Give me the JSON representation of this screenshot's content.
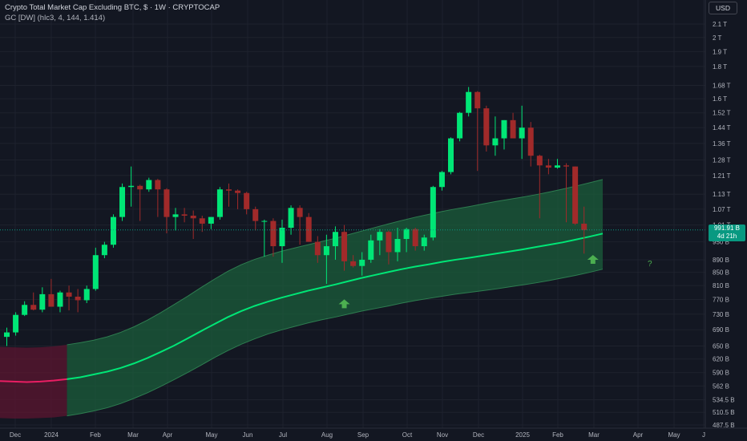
{
  "header": {
    "title": "Crypto Total Market Cap Excluding BTC, $ · 1W · CRYPTOCAP",
    "indicator": "GC [DW] (hlc3, 4, 144, 1.414)",
    "currency_button": "USD"
  },
  "price_tag": {
    "value": "991.91 B",
    "countdown": "4d 21h"
  },
  "annotation": {
    "question_mark": "?"
  },
  "colors": {
    "background": "#131722",
    "bull": "#00e676",
    "bear": "#a12a2a",
    "channel_mid": "#00e676",
    "channel_fill": "#1b5e3b",
    "channel_fill_early": "#5c1530",
    "channel_mid_early": "#e91e63",
    "arrow": "#4caf50"
  },
  "chart_data": {
    "type": "candlestick",
    "title": "Crypto Total Market Cap Excluding BTC, $ · 1W · CRYPTOCAP",
    "y_scale": "log",
    "ylim_billions": [
      487.5,
      2150
    ],
    "y_tick_labels": [
      "2.1 T",
      "2 T",
      "1.9 T",
      "1.8 T",
      "1.68 T",
      "1.6 T",
      "1.52 T",
      "1.44 T",
      "1.36 T",
      "1.28 T",
      "1.21 T",
      "1.13 T",
      "1.07 T",
      "1.01 T",
      "950 B",
      "890 B",
      "850 B",
      "810 B",
      "770 B",
      "730 B",
      "690 B",
      "650 B",
      "620 B",
      "590 B",
      "562 B",
      "534.5 B",
      "510.5 B",
      "487.5 B"
    ],
    "x_tick_labels": [
      "Dec",
      "2024",
      "Feb",
      "Mar",
      "Apr",
      "May",
      "Jun",
      "Jul",
      "Aug",
      "Sep",
      "Oct",
      "Nov",
      "Dec",
      "2025",
      "Feb",
      "Mar",
      "Apr",
      "May",
      "J"
    ],
    "candles_billions": [
      [
        672,
        695,
        650,
        683
      ],
      [
        683,
        735,
        675,
        728
      ],
      [
        728,
        765,
        725,
        755
      ],
      [
        755,
        790,
        740,
        742
      ],
      [
        742,
        805,
        735,
        785
      ],
      [
        785,
        830,
        755,
        750
      ],
      [
        750,
        795,
        735,
        790
      ],
      [
        790,
        810,
        740,
        778
      ],
      [
        778,
        800,
        735,
        768
      ],
      [
        768,
        810,
        760,
        800
      ],
      [
        800,
        930,
        795,
        905
      ],
      [
        905,
        950,
        895,
        940
      ],
      [
        940,
        1050,
        930,
        1040
      ],
      [
        1040,
        1175,
        1025,
        1160
      ],
      [
        1160,
        1250,
        1080,
        1165
      ],
      [
        1165,
        1170,
        1025,
        1150
      ],
      [
        1150,
        1200,
        1140,
        1190
      ],
      [
        1190,
        1195,
        1040,
        1150
      ],
      [
        1150,
        1155,
        980,
        1040
      ],
      [
        1040,
        1075,
        990,
        1050
      ],
      [
        1050,
        1075,
        1020,
        1045
      ],
      [
        1045,
        1065,
        960,
        1035
      ],
      [
        1035,
        1045,
        985,
        1015
      ],
      [
        1015,
        1040,
        995,
        1040
      ],
      [
        1040,
        1160,
        1030,
        1150
      ],
      [
        1150,
        1175,
        1080,
        1145
      ],
      [
        1145,
        1150,
        1070,
        1135
      ],
      [
        1135,
        1140,
        1050,
        1070
      ],
      [
        1070,
        1080,
        990,
        1025
      ],
      [
        1025,
        1030,
        900,
        1025
      ],
      [
        1025,
        1035,
        900,
        935
      ],
      [
        935,
        1030,
        880,
        1000
      ],
      [
        1000,
        1085,
        975,
        1075
      ],
      [
        1075,
        1085,
        940,
        1040
      ],
      [
        1040,
        1055,
        950,
        950
      ],
      [
        950,
        970,
        880,
        905
      ],
      [
        905,
        975,
        815,
        935
      ],
      [
        935,
        1005,
        890,
        985
      ],
      [
        985,
        1010,
        855,
        885
      ],
      [
        885,
        905,
        865,
        870
      ],
      [
        870,
        915,
        840,
        890
      ],
      [
        890,
        975,
        880,
        955
      ],
      [
        955,
        995,
        905,
        985
      ],
      [
        985,
        990,
        875,
        915
      ],
      [
        915,
        1000,
        885,
        960
      ],
      [
        960,
        1000,
        915,
        995
      ],
      [
        995,
        1000,
        920,
        935
      ],
      [
        935,
        975,
        920,
        965
      ],
      [
        965,
        1165,
        955,
        1160
      ],
      [
        1160,
        1230,
        1145,
        1225
      ],
      [
        1225,
        1390,
        1215,
        1385
      ],
      [
        1385,
        1525,
        1370,
        1520
      ],
      [
        1520,
        1670,
        1500,
        1640
      ],
      [
        1640,
        1645,
        1230,
        1545
      ],
      [
        1545,
        1560,
        1320,
        1350
      ],
      [
        1350,
        1500,
        1300,
        1385
      ],
      [
        1385,
        1480,
        1330,
        1480
      ],
      [
        1480,
        1520,
        1410,
        1385
      ],
      [
        1385,
        1560,
        1285,
        1440
      ],
      [
        1440,
        1470,
        1250,
        1300
      ],
      [
        1300,
        1305,
        1035,
        1255
      ],
      [
        1255,
        1285,
        1215,
        1245
      ],
      [
        1245,
        1285,
        1240,
        1255
      ],
      [
        1255,
        1265,
        1020,
        1250
      ],
      [
        1250,
        1250,
        1010,
        1015
      ],
      [
        1015,
        1080,
        910,
        992
      ]
    ],
    "channel_mid_billions": [
      572,
      571,
      570,
      571,
      573,
      576,
      580,
      586,
      592,
      600,
      610,
      622,
      636,
      651,
      668,
      686,
      704,
      722,
      738,
      752,
      764,
      775,
      785,
      795,
      804,
      813,
      823,
      833,
      842,
      851,
      860,
      868,
      875,
      883,
      890,
      896,
      903,
      910,
      917,
      924,
      932,
      940,
      948,
      958,
      968,
      979
    ],
    "channel_upper_billions": [
      648,
      647,
      646,
      647,
      649,
      653,
      658,
      664,
      672,
      683,
      697,
      714,
      734,
      756,
      779,
      804,
      829,
      853,
      874,
      891,
      905,
      918,
      929,
      940,
      951,
      962,
      975,
      988,
      1001,
      1014,
      1027,
      1039,
      1050,
      1061,
      1071,
      1080,
      1090,
      1100,
      1109,
      1118,
      1128,
      1139,
      1151,
      1164,
      1178,
      1192
    ],
    "channel_lower_billions": [
      500,
      499,
      499,
      500,
      501,
      504,
      508,
      513,
      519,
      527,
      537,
      548,
      561,
      575,
      590,
      606,
      623,
      639,
      654,
      667,
      679,
      689,
      698,
      707,
      715,
      722,
      730,
      738,
      745,
      752,
      760,
      767,
      773,
      779,
      785,
      790,
      795,
      800,
      806,
      812,
      818,
      825,
      833,
      841,
      850,
      860
    ],
    "signals": [
      {
        "type": "up-arrow",
        "week_index": 38,
        "price_billions": 757
      },
      {
        "type": "up-arrow",
        "week_index": 66,
        "price_billions": 890
      }
    ],
    "grid": true,
    "last_price": "991.91 B"
  }
}
